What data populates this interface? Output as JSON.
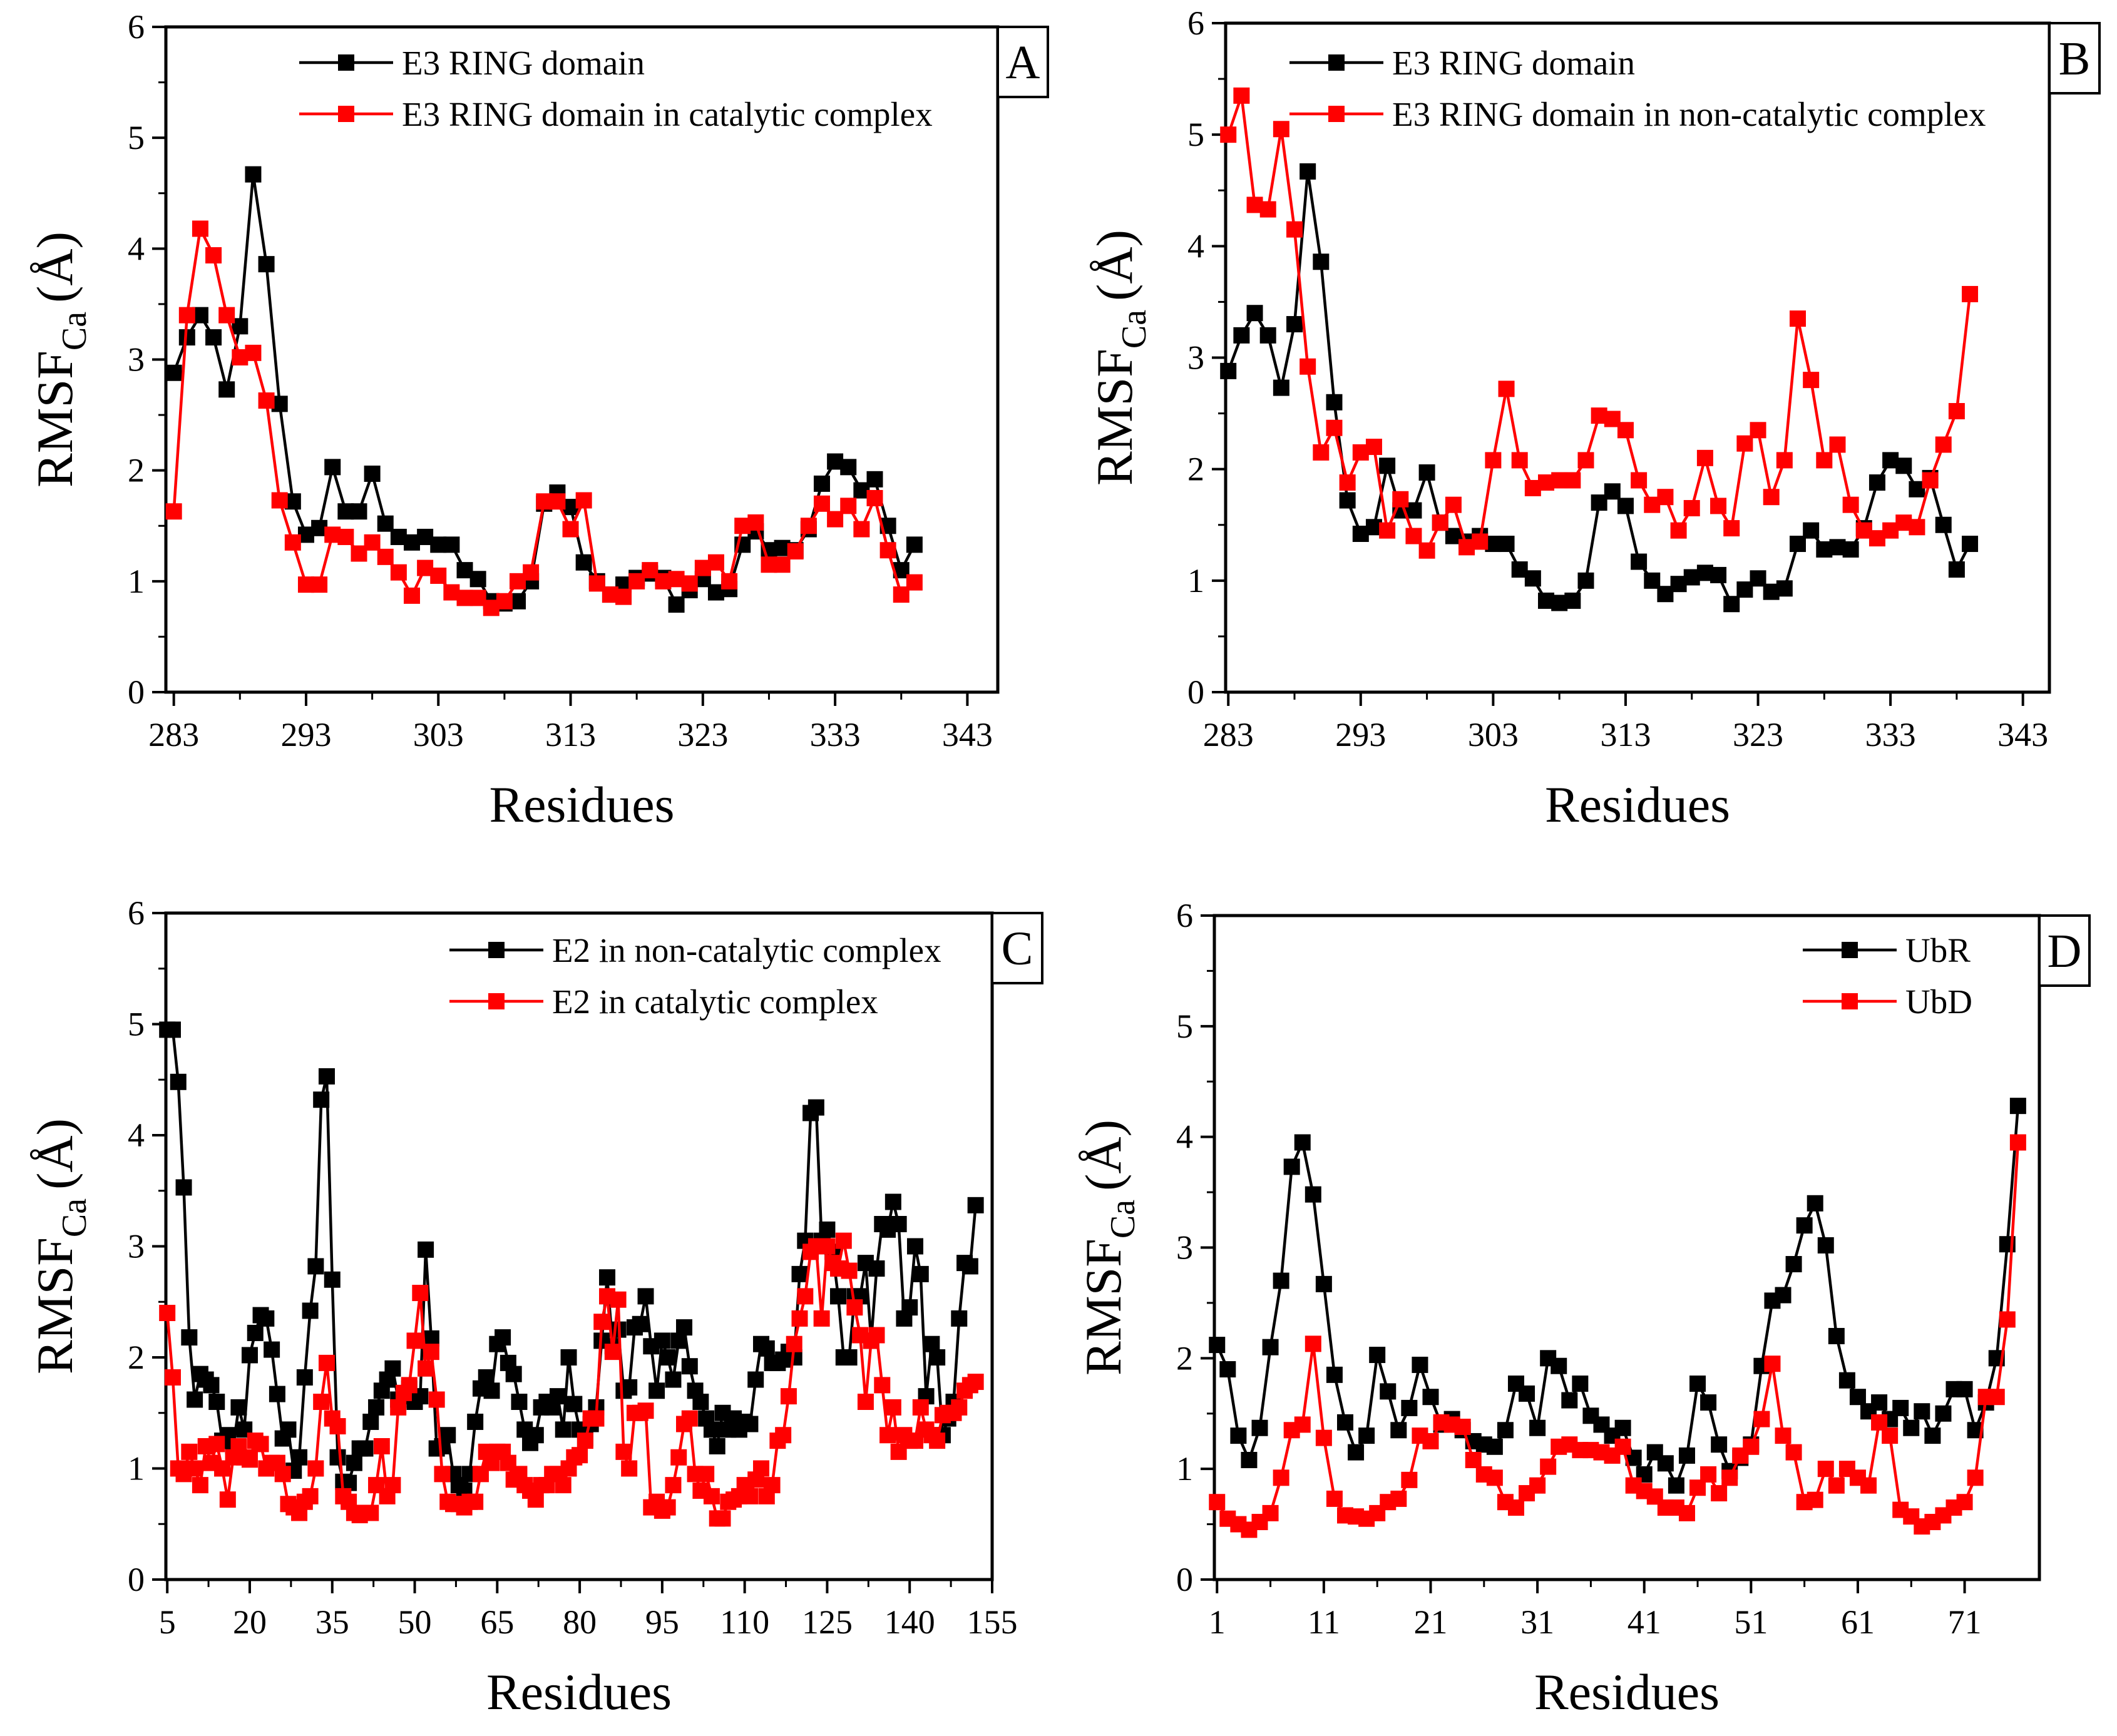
{
  "chart_data": [
    {
      "type": "line",
      "panel_label": "A",
      "xlabel": "Residues",
      "ylabel": "RMSF",
      "ylabel_sub": "Ca",
      "ylabel_unit": "(Å)",
      "xlim": [
        282.4,
        345.3
      ],
      "ylim": [
        0,
        6
      ],
      "xticks": [
        283,
        293,
        303,
        313,
        323,
        333,
        343
      ],
      "yticks": [
        0,
        1,
        2,
        3,
        4,
        5,
        6
      ],
      "legend_position": "top-right",
      "series": [
        {
          "name": "E3 RING domain",
          "color": "#000000",
          "x_start": 283,
          "values": [
            2.88,
            3.2,
            3.4,
            3.2,
            2.73,
            3.3,
            4.67,
            3.86,
            2.6,
            1.72,
            1.42,
            1.48,
            2.03,
            1.63,
            1.63,
            1.97,
            1.52,
            1.4,
            1.35,
            1.4,
            1.33,
            1.33,
            1.1,
            1.02,
            0.82,
            0.8,
            0.82,
            1.0,
            1.7,
            1.8,
            1.67,
            1.17,
            1.0,
            0.88,
            0.97,
            1.03,
            1.07,
            1.03,
            0.79,
            0.92,
            1.02,
            0.9,
            0.93,
            1.33,
            1.45,
            1.28,
            1.3,
            1.28,
            1.47,
            1.88,
            2.08,
            2.03,
            1.82,
            1.92,
            1.5,
            1.1,
            1.33
          ]
        },
        {
          "name": "E3 RING domain in catalytic complex",
          "color": "#ff0000",
          "x_start": 283,
          "values": [
            1.63,
            3.4,
            4.18,
            3.94,
            3.4,
            3.02,
            3.06,
            2.63,
            1.73,
            1.35,
            0.97,
            0.97,
            1.42,
            1.4,
            1.25,
            1.35,
            1.22,
            1.08,
            0.87,
            1.12,
            1.05,
            0.9,
            0.85,
            0.85,
            0.76,
            0.82,
            1.0,
            1.08,
            1.72,
            1.72,
            1.47,
            1.73,
            0.98,
            0.88,
            0.86,
            1.0,
            1.1,
            1.0,
            1.02,
            0.98,
            1.12,
            1.17,
            1.0,
            1.5,
            1.53,
            1.15,
            1.15,
            1.27,
            1.5,
            1.7,
            1.56,
            1.68,
            1.47,
            1.75,
            1.28,
            0.88,
            0.99
          ]
        }
      ]
    },
    {
      "type": "line",
      "panel_label": "B",
      "xlabel": "Residues",
      "ylabel": "RMSF",
      "ylabel_sub": "Ca",
      "ylabel_unit": "(Å)",
      "xlim": [
        282.8,
        345.0
      ],
      "ylim": [
        0,
        6
      ],
      "xticks": [
        283,
        293,
        303,
        313,
        323,
        333,
        343
      ],
      "yticks": [
        0,
        1,
        2,
        3,
        4,
        5,
        6
      ],
      "legend_position": "top-right",
      "series": [
        {
          "name": "E3 RING domain",
          "color": "#000000",
          "x_start": 283,
          "values": [
            2.88,
            3.2,
            3.4,
            3.2,
            2.73,
            3.3,
            4.67,
            3.86,
            2.6,
            1.72,
            1.42,
            1.48,
            2.03,
            1.63,
            1.63,
            1.97,
            1.52,
            1.4,
            1.35,
            1.4,
            1.33,
            1.33,
            1.1,
            1.02,
            0.82,
            0.8,
            0.82,
            1.0,
            1.7,
            1.8,
            1.67,
            1.17,
            1.0,
            0.88,
            0.97,
            1.03,
            1.07,
            1.05,
            0.79,
            0.92,
            1.02,
            0.9,
            0.93,
            1.33,
            1.45,
            1.28,
            1.3,
            1.28,
            1.47,
            1.88,
            2.08,
            2.03,
            1.82,
            1.92,
            1.5,
            1.1,
            1.33
          ]
        },
        {
          "name": "E3 RING domain in non-catalytic complex",
          "color": "#ff0000",
          "x_start": 283,
          "values": [
            5.0,
            5.35,
            4.37,
            4.33,
            5.05,
            4.15,
            2.92,
            2.15,
            2.37,
            1.88,
            2.15,
            2.2,
            1.45,
            1.73,
            1.4,
            1.27,
            1.52,
            1.68,
            1.3,
            1.35,
            2.08,
            2.72,
            2.08,
            1.83,
            1.88,
            1.9,
            1.9,
            2.08,
            2.48,
            2.45,
            2.35,
            1.9,
            1.68,
            1.75,
            1.45,
            1.65,
            2.1,
            1.67,
            1.47,
            2.23,
            2.35,
            1.75,
            2.08,
            3.35,
            2.8,
            2.08,
            2.22,
            1.68,
            1.45,
            1.38,
            1.45,
            1.52,
            1.48,
            1.9,
            2.22,
            2.52,
            3.57
          ]
        }
      ]
    },
    {
      "type": "line",
      "panel_label": "C",
      "xlabel": "Residues",
      "ylabel": "RMSF",
      "ylabel_sub": "Ca",
      "ylabel_unit": "(Å)",
      "xlim": [
        4.75,
        155
      ],
      "ylim": [
        0,
        6
      ],
      "xticks": [
        5,
        20,
        35,
        50,
        65,
        80,
        95,
        110,
        125,
        140,
        155
      ],
      "yticks": [
        0,
        1,
        2,
        3,
        4,
        5,
        6
      ],
      "legend_position": "top-right",
      "series": [
        {
          "name": "E2 in non-catalytic complex",
          "color": "#000000",
          "x_start": 5,
          "values": [
            4.95,
            4.95,
            4.48,
            3.53,
            2.18,
            1.62,
            1.85,
            1.8,
            1.75,
            1.6,
            1.25,
            1.3,
            1.2,
            1.55,
            1.35,
            2.02,
            2.22,
            2.38,
            2.35,
            2.07,
            1.67,
            1.27,
            1.35,
            0.98,
            1.1,
            1.82,
            2.42,
            2.82,
            4.32,
            4.53,
            2.7,
            1.1,
            0.88,
            0.87,
            1.05,
            1.18,
            1.18,
            1.42,
            1.55,
            1.7,
            1.8,
            1.9,
            1.62,
            1.65,
            1.72,
            1.6,
            1.65,
            2.97,
            2.17,
            1.18,
            1.2,
            1.3,
            0.95,
            0.85,
            0.8,
            0.95,
            1.42,
            1.72,
            1.82,
            1.7,
            2.12,
            2.18,
            1.95,
            1.85,
            1.6,
            1.35,
            1.23,
            1.3,
            1.55,
            1.6,
            1.55,
            1.65,
            1.35,
            2.0,
            1.58,
            1.35,
            1.27,
            1.4,
            1.55,
            2.15,
            2.72,
            2.1,
            2.25,
            1.7,
            1.73,
            2.27,
            2.3,
            2.55,
            2.1,
            1.7,
            2.15,
            2.0,
            1.8,
            2.15,
            2.27,
            1.92,
            1.7,
            1.6,
            1.45,
            1.35,
            1.2,
            1.5,
            1.35,
            1.45,
            1.35,
            1.42,
            1.4,
            1.8,
            2.12,
            2.08,
            1.95,
            1.95,
            1.98,
            2.05,
            2.0,
            2.75,
            3.05,
            4.2,
            4.25,
            3.05,
            3.15,
            2.95,
            2.55,
            2.0,
            2.0,
            2.55,
            2.55,
            2.85,
            2.15,
            2.8,
            3.2,
            3.15,
            3.4,
            3.2,
            2.35,
            2.45,
            3.0,
            2.75,
            1.65,
            2.12,
            2.0,
            1.3,
            1.45,
            1.6,
            2.35,
            2.85,
            2.82,
            3.37
          ]
        },
        {
          "name": "E2 in catalytic complex",
          "color": "#ff0000",
          "x_start": 5,
          "values": [
            2.4,
            1.82,
            1.0,
            0.95,
            1.15,
            1.0,
            0.85,
            1.2,
            1.05,
            1.22,
            1.0,
            0.72,
            1.1,
            1.2,
            1.1,
            1.08,
            1.25,
            1.22,
            1.0,
            1.05,
            1.05,
            0.95,
            0.68,
            0.65,
            0.6,
            0.7,
            0.75,
            1.0,
            1.6,
            1.95,
            1.45,
            1.38,
            0.75,
            0.7,
            0.6,
            0.58,
            0.6,
            0.6,
            0.85,
            1.2,
            0.75,
            0.85,
            1.55,
            1.68,
            1.75,
            2.15,
            2.58,
            1.9,
            2.05,
            1.62,
            0.95,
            0.7,
            0.68,
            0.68,
            0.65,
            0.7,
            0.7,
            0.95,
            1.15,
            1.05,
            1.15,
            1.15,
            1.05,
            0.9,
            0.95,
            0.85,
            0.8,
            0.72,
            0.85,
            0.85,
            0.95,
            0.95,
            0.85,
            1.0,
            1.1,
            1.12,
            1.25,
            1.45,
            1.45,
            2.32,
            2.55,
            2.05,
            2.52,
            1.15,
            1.0,
            1.5,
            1.5,
            1.52,
            0.65,
            0.7,
            0.62,
            0.65,
            0.85,
            1.1,
            1.4,
            1.45,
            0.95,
            0.8,
            0.95,
            0.75,
            0.55,
            0.55,
            0.7,
            0.72,
            0.75,
            0.85,
            0.75,
            0.9,
            1.0,
            0.75,
            0.85,
            1.25,
            1.3,
            1.65,
            2.12,
            2.35,
            2.55,
            2.95,
            3.0,
            2.35,
            3.0,
            2.85,
            2.8,
            3.05,
            2.78,
            2.45,
            2.2,
            1.6,
            2.15,
            2.2,
            1.75,
            1.3,
            1.55,
            1.15,
            1.3,
            1.25,
            1.25,
            1.55,
            1.35,
            1.3,
            1.25,
            1.48,
            1.5,
            1.5,
            1.55,
            1.7,
            1.75,
            1.78
          ]
        }
      ]
    },
    {
      "type": "line",
      "panel_label": "D",
      "xlabel": "Residues",
      "ylabel": "RMSF",
      "ylabel_sub": "Ca",
      "ylabel_unit": "(Å)",
      "xlim": [
        0.75,
        78
      ],
      "ylim": [
        0,
        6
      ],
      "xticks": [
        1,
        11,
        21,
        31,
        41,
        51,
        61,
        71
      ],
      "yticks": [
        0,
        1,
        2,
        3,
        4,
        5,
        6
      ],
      "legend_position": "top-right",
      "series": [
        {
          "name": "UbR",
          "color": "#000000",
          "x_start": 1,
          "values": [
            2.12,
            1.9,
            1.3,
            1.08,
            1.37,
            2.1,
            2.7,
            3.73,
            3.95,
            3.48,
            2.67,
            1.85,
            1.42,
            1.15,
            1.3,
            2.03,
            1.7,
            1.35,
            1.55,
            1.94,
            1.65,
            1.4,
            1.45,
            1.35,
            1.25,
            1.22,
            1.2,
            1.35,
            1.77,
            1.68,
            1.37,
            2.0,
            1.93,
            1.62,
            1.77,
            1.48,
            1.4,
            1.3,
            1.37,
            1.1,
            0.95,
            1.15,
            1.05,
            0.85,
            1.12,
            1.77,
            1.6,
            1.22,
            0.98,
            1.1,
            1.22,
            1.93,
            2.52,
            2.57,
            2.85,
            3.2,
            3.4,
            3.02,
            2.2,
            1.8,
            1.65,
            1.52,
            1.6,
            1.45,
            1.55,
            1.37,
            1.52,
            1.3,
            1.5,
            1.72,
            1.72,
            1.35,
            1.6,
            2.0,
            3.03,
            4.28
          ]
        },
        {
          "name": "UbD",
          "color": "#ff0000",
          "x_start": 1,
          "values": [
            0.7,
            0.55,
            0.5,
            0.45,
            0.52,
            0.6,
            0.92,
            1.35,
            1.4,
            2.13,
            1.28,
            0.73,
            0.58,
            0.57,
            0.55,
            0.6,
            0.7,
            0.73,
            0.9,
            1.3,
            1.25,
            1.42,
            1.4,
            1.38,
            1.08,
            0.95,
            0.92,
            0.7,
            0.65,
            0.78,
            0.85,
            1.02,
            1.2,
            1.22,
            1.17,
            1.17,
            1.15,
            1.12,
            1.2,
            0.85,
            0.8,
            0.75,
            0.65,
            0.65,
            0.6,
            0.83,
            0.95,
            0.78,
            0.92,
            1.12,
            1.2,
            1.45,
            1.95,
            1.3,
            1.15,
            0.7,
            0.72,
            1.0,
            0.85,
            1.0,
            0.92,
            0.85,
            1.42,
            1.3,
            0.63,
            0.57,
            0.48,
            0.52,
            0.58,
            0.65,
            0.7,
            0.92,
            1.65,
            1.65,
            2.35,
            3.95
          ]
        }
      ]
    }
  ]
}
